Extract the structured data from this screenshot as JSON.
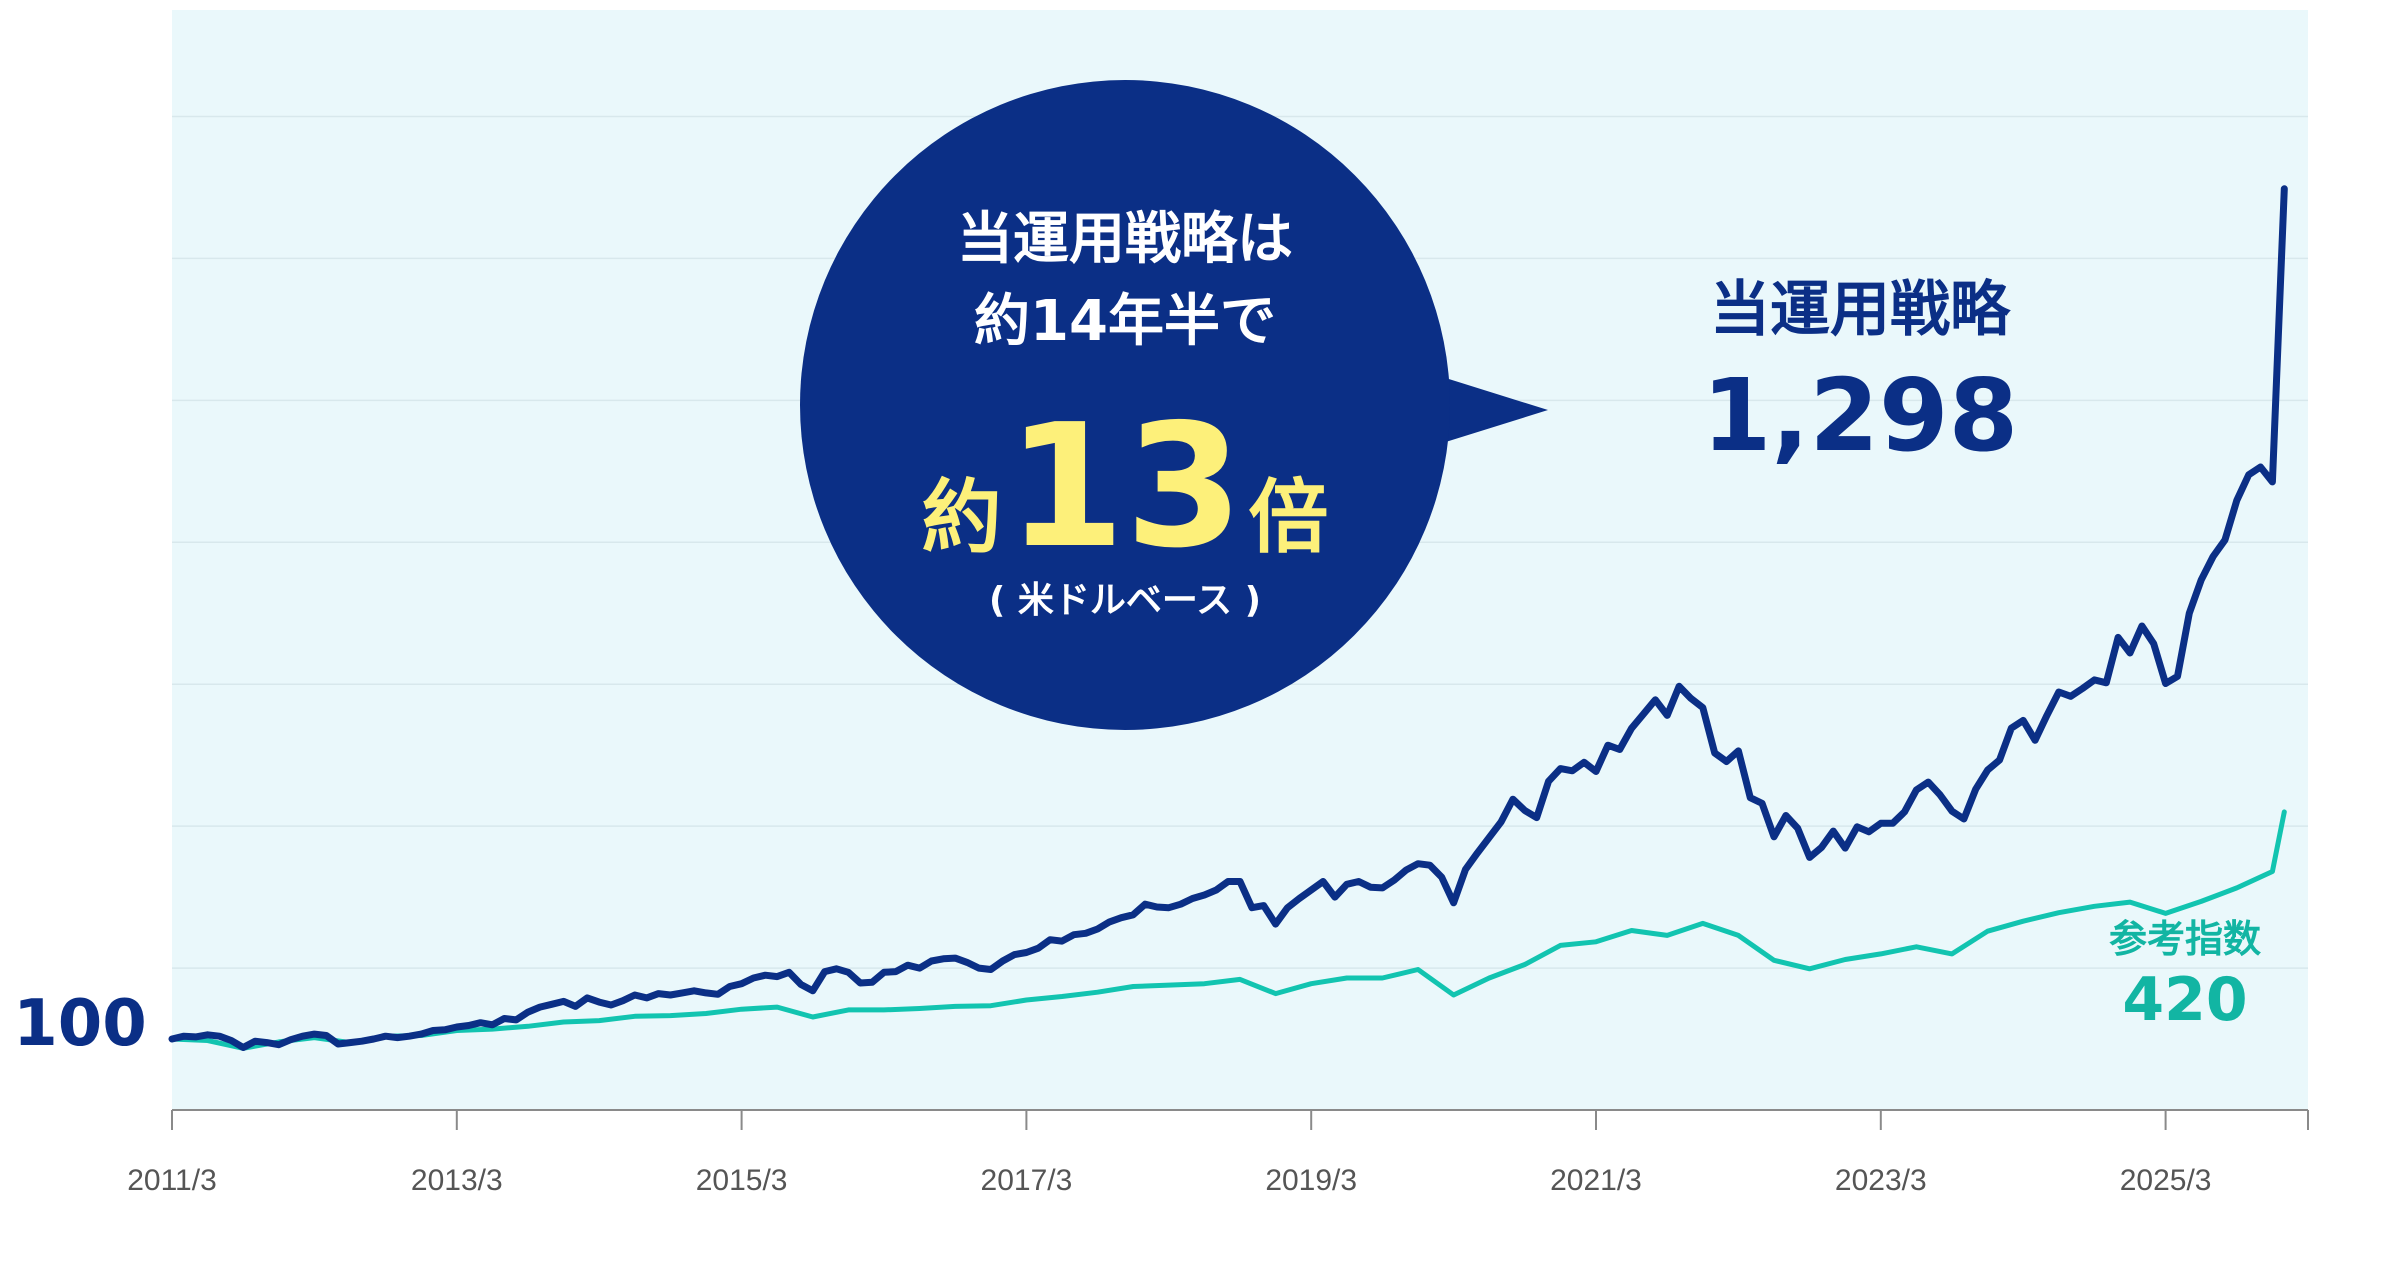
{
  "chart_data": {
    "type": "line",
    "title": "",
    "xlabel": "",
    "ylabel": "",
    "x_ticks": [
      "2011/3",
      "2013/3",
      "2015/3",
      "2017/3",
      "2019/3",
      "2021/3",
      "2023/3",
      "2025/3"
    ],
    "x_range": [
      "2011/3",
      "2026/3"
    ],
    "ylim": [
      0,
      1550
    ],
    "grid": true,
    "start_value_label": "100",
    "series": [
      {
        "name": "当運用戦略",
        "color": "#0b2f86",
        "end_value_label": "1,298",
        "points": [
          [
            "2011/3",
            100
          ],
          [
            "2011/4",
            104
          ],
          [
            "2011/5",
            103
          ],
          [
            "2011/6",
            106
          ],
          [
            "2011/7",
            104
          ],
          [
            "2011/8",
            98
          ],
          [
            "2011/9",
            88
          ],
          [
            "2011/10",
            97
          ],
          [
            "2011/11",
            95
          ],
          [
            "2011/12",
            92
          ],
          [
            "2012/1",
            99
          ],
          [
            "2012/2",
            104
          ],
          [
            "2012/3",
            107
          ],
          [
            "2012/4",
            105
          ],
          [
            "2012/5",
            93
          ],
          [
            "2012/6",
            95
          ],
          [
            "2012/7",
            97
          ],
          [
            "2012/8",
            100
          ],
          [
            "2012/9",
            104
          ],
          [
            "2012/10",
            102
          ],
          [
            "2012/11",
            104
          ],
          [
            "2012/12",
            107
          ],
          [
            "2013/1",
            112
          ],
          [
            "2013/2",
            113
          ],
          [
            "2013/3",
            117
          ],
          [
            "2013/4",
            119
          ],
          [
            "2013/5",
            123
          ],
          [
            "2013/6",
            120
          ],
          [
            "2013/7",
            129
          ],
          [
            "2013/8",
            127
          ],
          [
            "2013/9",
            138
          ],
          [
            "2013/10",
            145
          ],
          [
            "2013/11",
            149
          ],
          [
            "2013/12",
            153
          ],
          [
            "2014/1",
            146
          ],
          [
            "2014/2",
            158
          ],
          [
            "2014/3",
            152
          ],
          [
            "2014/4",
            148
          ],
          [
            "2014/5",
            154
          ],
          [
            "2014/6",
            162
          ],
          [
            "2014/7",
            158
          ],
          [
            "2014/8",
            164
          ],
          [
            "2014/9",
            162
          ],
          [
            "2014/10",
            165
          ],
          [
            "2014/11",
            168
          ],
          [
            "2014/12",
            165
          ],
          [
            "2015/1",
            163
          ],
          [
            "2015/2",
            174
          ],
          [
            "2015/3",
            178
          ],
          [
            "2015/4",
            186
          ],
          [
            "2015/5",
            190
          ],
          [
            "2015/6",
            188
          ],
          [
            "2015/7",
            194
          ],
          [
            "2015/8",
            177
          ],
          [
            "2015/9",
            168
          ],
          [
            "2015/10",
            195
          ],
          [
            "2015/11",
            199
          ],
          [
            "2015/12",
            194
          ],
          [
            "2016/1",
            179
          ],
          [
            "2016/2",
            180
          ],
          [
            "2016/3",
            194
          ],
          [
            "2016/4",
            195
          ],
          [
            "2016/5",
            204
          ],
          [
            "2016/6",
            200
          ],
          [
            "2016/7",
            210
          ],
          [
            "2016/8",
            213
          ],
          [
            "2016/9",
            214
          ],
          [
            "2016/10",
            208
          ],
          [
            "2016/11",
            200
          ],
          [
            "2016/12",
            198
          ],
          [
            "2017/1",
            210
          ],
          [
            "2017/2",
            219
          ],
          [
            "2017/3",
            222
          ],
          [
            "2017/4",
            228
          ],
          [
            "2017/5",
            240
          ],
          [
            "2017/6",
            238
          ],
          [
            "2017/7",
            247
          ],
          [
            "2017/8",
            249
          ],
          [
            "2017/9",
            255
          ],
          [
            "2017/10",
            265
          ],
          [
            "2017/11",
            271
          ],
          [
            "2017/12",
            275
          ],
          [
            "2018/1",
            290
          ],
          [
            "2018/2",
            286
          ],
          [
            "2018/3",
            285
          ],
          [
            "2018/4",
            290
          ],
          [
            "2018/5",
            298
          ],
          [
            "2018/6",
            303
          ],
          [
            "2018/7",
            310
          ],
          [
            "2018/8",
            322
          ],
          [
            "2018/9",
            322
          ],
          [
            "2018/10",
            285
          ],
          [
            "2018/11",
            288
          ],
          [
            "2018/12",
            262
          ],
          [
            "2019/1",
            285
          ],
          [
            "2019/2",
            298
          ],
          [
            "2019/3",
            310
          ],
          [
            "2019/4",
            322
          ],
          [
            "2019/5",
            300
          ],
          [
            "2019/6",
            318
          ],
          [
            "2019/7",
            322
          ],
          [
            "2019/8",
            314
          ],
          [
            "2019/9",
            313
          ],
          [
            "2019/10",
            324
          ],
          [
            "2019/11",
            338
          ],
          [
            "2019/12",
            347
          ],
          [
            "2020/1",
            345
          ],
          [
            "2020/2",
            328
          ],
          [
            "2020/3",
            292
          ],
          [
            "2020/4",
            339
          ],
          [
            "2020/5",
            362
          ],
          [
            "2020/6",
            384
          ],
          [
            "2020/7",
            406
          ],
          [
            "2020/8",
            438
          ],
          [
            "2020/9",
            422
          ],
          [
            "2020/10",
            412
          ],
          [
            "2020/11",
            463
          ],
          [
            "2020/12",
            481
          ],
          [
            "2021/1",
            478
          ],
          [
            "2021/2",
            490
          ],
          [
            "2021/3",
            477
          ],
          [
            "2021/4",
            514
          ],
          [
            "2021/5",
            508
          ],
          [
            "2021/6",
            538
          ],
          [
            "2021/7",
            558
          ],
          [
            "2021/8",
            578
          ],
          [
            "2021/9",
            556
          ],
          [
            "2021/10",
            597
          ],
          [
            "2021/11",
            580
          ],
          [
            "2021/12",
            567
          ],
          [
            "2022/1",
            503
          ],
          [
            "2022/2",
            491
          ],
          [
            "2022/3",
            506
          ],
          [
            "2022/4",
            440
          ],
          [
            "2022/5",
            432
          ],
          [
            "2022/6",
            385
          ],
          [
            "2022/7",
            415
          ],
          [
            "2022/8",
            397
          ],
          [
            "2022/9",
            356
          ],
          [
            "2022/10",
            370
          ],
          [
            "2022/11",
            393
          ],
          [
            "2022/12",
            369
          ],
          [
            "2023/1",
            399
          ],
          [
            "2023/2",
            392
          ],
          [
            "2023/3",
            404
          ],
          [
            "2023/4",
            404
          ],
          [
            "2023/5",
            420
          ],
          [
            "2023/6",
            451
          ],
          [
            "2023/7",
            462
          ],
          [
            "2023/8",
            444
          ],
          [
            "2023/9",
            421
          ],
          [
            "2023/10",
            410
          ],
          [
            "2023/11",
            452
          ],
          [
            "2023/12",
            479
          ],
          [
            "2024/1",
            493
          ],
          [
            "2024/2",
            538
          ],
          [
            "2024/3",
            549
          ],
          [
            "2024/4",
            521
          ],
          [
            "2024/5",
            556
          ],
          [
            "2024/6",
            589
          ],
          [
            "2024/7",
            583
          ],
          [
            "2024/8",
            594
          ],
          [
            "2024/9",
            606
          ],
          [
            "2024/10",
            602
          ],
          [
            "2024/11",
            666
          ],
          [
            "2024/12",
            644
          ],
          [
            "2025/1",
            682
          ],
          [
            "2025/2",
            657
          ],
          [
            "2025/3",
            601
          ],
          [
            "2025/4",
            611
          ],
          [
            "2025/5",
            700
          ],
          [
            "2025/6",
            747
          ],
          [
            "2025/7",
            780
          ],
          [
            "2025/8",
            803
          ],
          [
            "2025/9",
            859
          ],
          [
            "2025/10",
            895
          ],
          [
            "2025/11",
            906
          ],
          [
            "2025/12",
            885
          ],
          [
            "2026/1",
            1298
          ]
        ]
      },
      {
        "name": "参考指数",
        "color": "#12c4b0",
        "end_value_label": "420",
        "points": [
          [
            "2011/3",
            100
          ],
          [
            "2011/6",
            98
          ],
          [
            "2011/9",
            87
          ],
          [
            "2011/12",
            96
          ],
          [
            "2012/3",
            102
          ],
          [
            "2012/6",
            95
          ],
          [
            "2012/9",
            104
          ],
          [
            "2012/12",
            105
          ],
          [
            "2013/3",
            112
          ],
          [
            "2013/6",
            114
          ],
          [
            "2013/9",
            118
          ],
          [
            "2013/12",
            124
          ],
          [
            "2014/3",
            126
          ],
          [
            "2014/6",
            132
          ],
          [
            "2014/9",
            133
          ],
          [
            "2014/12",
            136
          ],
          [
            "2015/3",
            142
          ],
          [
            "2015/6",
            145
          ],
          [
            "2015/9",
            131
          ],
          [
            "2015/12",
            141
          ],
          [
            "2016/3",
            141
          ],
          [
            "2016/6",
            143
          ],
          [
            "2016/9",
            146
          ],
          [
            "2016/12",
            147
          ],
          [
            "2017/3",
            155
          ],
          [
            "2017/6",
            160
          ],
          [
            "2017/9",
            166
          ],
          [
            "2017/12",
            174
          ],
          [
            "2018/3",
            176
          ],
          [
            "2018/6",
            178
          ],
          [
            "2018/9",
            184
          ],
          [
            "2018/12",
            164
          ],
          [
            "2019/3",
            178
          ],
          [
            "2019/6",
            186
          ],
          [
            "2019/9",
            186
          ],
          [
            "2019/12",
            198
          ],
          [
            "2020/3",
            162
          ],
          [
            "2020/6",
            186
          ],
          [
            "2020/9",
            205
          ],
          [
            "2020/12",
            232
          ],
          [
            "2021/3",
            237
          ],
          [
            "2021/6",
            253
          ],
          [
            "2021/9",
            246
          ],
          [
            "2021/12",
            263
          ],
          [
            "2022/3",
            246
          ],
          [
            "2022/6",
            211
          ],
          [
            "2022/9",
            199
          ],
          [
            "2022/12",
            212
          ],
          [
            "2023/3",
            220
          ],
          [
            "2023/6",
            230
          ],
          [
            "2023/9",
            220
          ],
          [
            "2023/12",
            252
          ],
          [
            "2024/3",
            266
          ],
          [
            "2024/6",
            278
          ],
          [
            "2024/9",
            287
          ],
          [
            "2024/12",
            293
          ],
          [
            "2025/3",
            277
          ],
          [
            "2025/6",
            294
          ],
          [
            "2025/9",
            313
          ],
          [
            "2025/12",
            336
          ],
          [
            "2026/1",
            420
          ]
        ]
      }
    ],
    "annotations": {
      "bubble_line1": "当運用戦略は",
      "bubble_line2": "約14年半で",
      "bubble_big_prefix": "約",
      "bubble_big_number": "13",
      "bubble_big_suffix": "倍",
      "bubble_note": "( 米ドルベース )"
    }
  },
  "colors": {
    "plot_background": "#eaf8fb",
    "grid": "#d8e8ec",
    "axis": "#8a8a8a",
    "bubble": "#0b2f86",
    "highlight": "#fdf07a"
  }
}
